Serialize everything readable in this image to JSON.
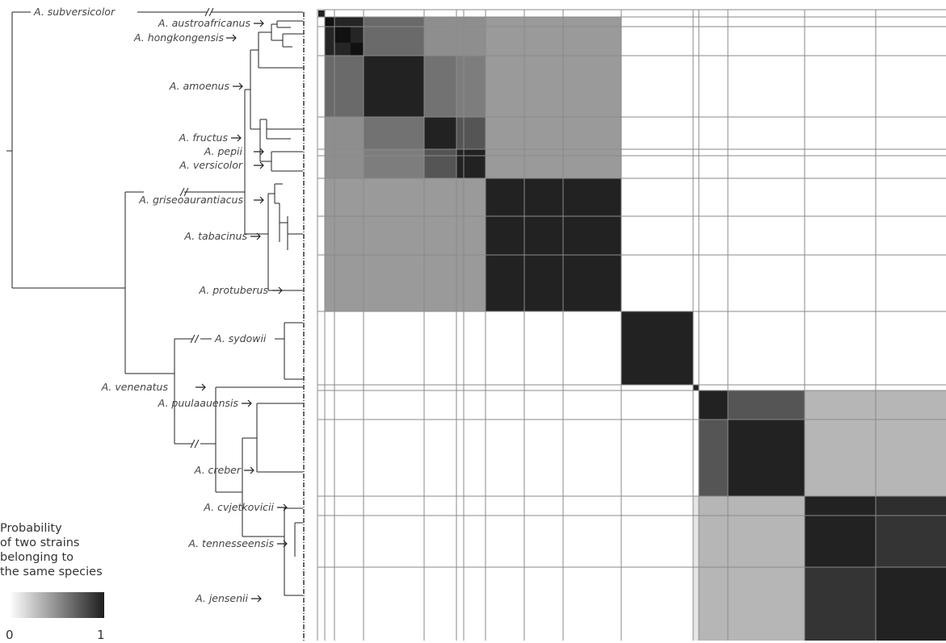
{
  "species": [
    {
      "id": "subversicolor",
      "label": "A. subversicolor"
    },
    {
      "id": "austroafricanus",
      "label": "A. austroafricanus"
    },
    {
      "id": "hongkongensis",
      "label": "A. hongkongensis"
    },
    {
      "id": "amoenus",
      "label": "A. amoenus"
    },
    {
      "id": "fructus",
      "label": "A. fructus"
    },
    {
      "id": "pepii",
      "label": "A. pepii"
    },
    {
      "id": "versicolor",
      "label": "A. versicolor"
    },
    {
      "id": "griseoaurantiacus",
      "label": "A. griseoaurantiacus"
    },
    {
      "id": "tabacinus",
      "label": "A. tabacinus"
    },
    {
      "id": "protuberus",
      "label": "A. protuberus"
    },
    {
      "id": "sydowii",
      "label": "A. sydowii"
    },
    {
      "id": "venenatus",
      "label": "A. venenatus"
    },
    {
      "id": "puulaauensis",
      "label": "A. puulaauensis"
    },
    {
      "id": "creber",
      "label": "A. creber"
    },
    {
      "id": "cvjetkovicii",
      "label": "A. cvjetkovicii"
    },
    {
      "id": "tennesseensis",
      "label": "A. tennesseensis"
    },
    {
      "id": "jensenii",
      "label": "A. jensenii"
    }
  ],
  "legend": {
    "title_lines": [
      "Probability",
      "of two strains",
      "belonging to",
      "the same species"
    ],
    "min_label": "0",
    "max_label": "1",
    "min_value": 0,
    "max_value": 1
  },
  "matrix": {
    "description_order": [
      "subversicolor",
      "austroafricanus",
      "hongkongensis",
      "amoenus",
      "fructus",
      "pepii",
      "versicolor",
      "griseoaurantiacus",
      "tabacinus",
      "protuberus",
      "sydowii",
      "venenatus",
      "puulaauensis",
      "creber",
      "cvjetkovicii",
      "tennesseensis",
      "jensenii"
    ]
  }
}
